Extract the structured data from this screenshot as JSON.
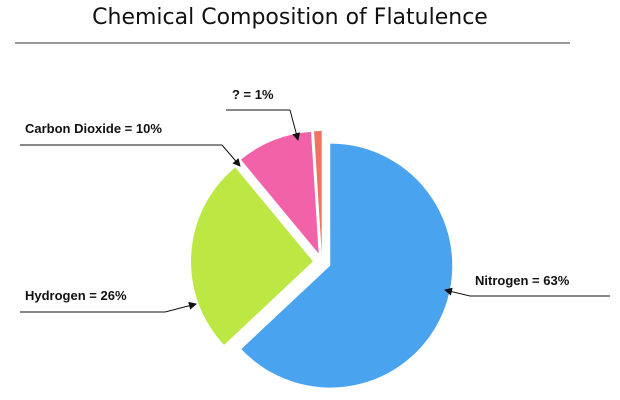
{
  "chart_data": {
    "type": "pie",
    "title": "Chemical Composition of Flatulence",
    "values": [
      63,
      26,
      10,
      1
    ],
    "value_labels": [
      "Nitrogen = 63%",
      "Hydrogen = 26%",
      "Carbon Dioxide = 10%",
      "? = 1%"
    ],
    "colors": [
      "#4aa3ee",
      "#bde844",
      "#f262a8",
      "#f07262"
    ]
  }
}
